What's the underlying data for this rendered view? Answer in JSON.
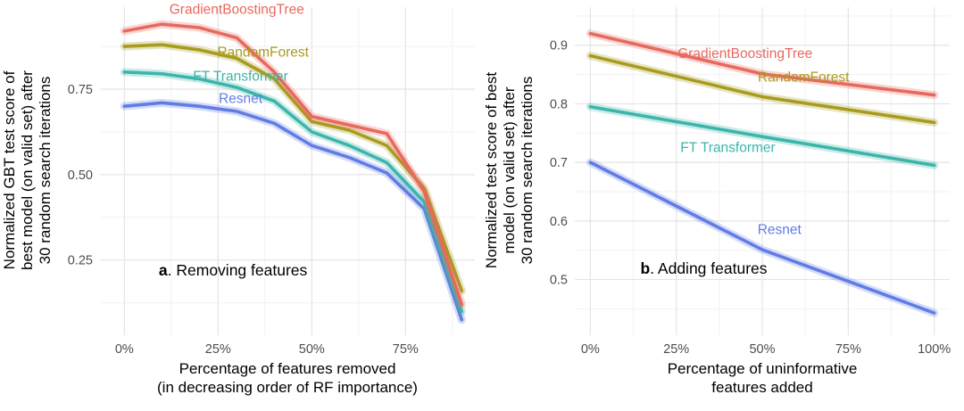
{
  "colors": {
    "GradientBoostingTree": "#E8695E",
    "RandomForest": "#A89B1D",
    "FT Transformer": "#3CB5AA",
    "Resnet": "#617CE5",
    "grid_major": "#E4E4E4",
    "grid_minor": "#F2F2F2",
    "tick_text": "#4D4D4D",
    "axis_title": "#000000",
    "annotation": "#000000"
  },
  "chart_data": [
    {
      "id": "removing-features",
      "type": "line",
      "annotation": {
        "letter": "a",
        "text": ". Removing features",
        "x": 29,
        "y": 0.205
      },
      "xlabel_lines": [
        "Percentage of features removed",
        "(in decreasing order of RF importance)"
      ],
      "ylabel_lines": [
        "Normalized GBT test score of",
        "best model (on valid set) after",
        "30 random search iterations"
      ],
      "xlim": [
        -6.5,
        93.5
      ],
      "ylim": [
        0.03,
        0.99
      ],
      "xticks": [
        0,
        25,
        50,
        75
      ],
      "xtick_labels": [
        "0%",
        "25%",
        "50%",
        "75%"
      ],
      "yticks": [
        0.25,
        0.5,
        0.75
      ],
      "ytick_labels": [
        "0.25",
        "0.50",
        "0.75"
      ],
      "grid": true,
      "legend": "inline-labels",
      "x": [
        0,
        10,
        20,
        30,
        40,
        50,
        60,
        70,
        80,
        90
      ],
      "series": [
        {
          "name": "GradientBoostingTree",
          "values": [
            0.92,
            0.94,
            0.93,
            0.9,
            0.8,
            0.67,
            0.645,
            0.62,
            0.45,
            0.12
          ],
          "label_x": 30,
          "label_y": 0.97
        },
        {
          "name": "RandomForest",
          "values": [
            0.875,
            0.88,
            0.865,
            0.84,
            0.78,
            0.655,
            0.63,
            0.585,
            0.46,
            0.16
          ],
          "label_x": 37,
          "label_y": 0.845
        },
        {
          "name": "FT Transformer",
          "values": [
            0.8,
            0.795,
            0.78,
            0.755,
            0.715,
            0.625,
            0.585,
            0.535,
            0.42,
            0.1
          ],
          "label_x": 31,
          "label_y": 0.775
        },
        {
          "name": "Resnet",
          "values": [
            0.7,
            0.71,
            0.7,
            0.685,
            0.65,
            0.585,
            0.55,
            0.505,
            0.4,
            0.075
          ],
          "label_x": 31,
          "label_y": 0.71
        }
      ]
    },
    {
      "id": "adding-features",
      "type": "line",
      "annotation": {
        "letter": "b",
        "text": ". Adding features",
        "x": 33,
        "y": 0.51
      },
      "xlabel_lines": [
        "Percentage of uninformative",
        "features added"
      ],
      "ylabel_lines": [
        "Normalized test score of best",
        "model (on valid set) after",
        "30 random search iterations"
      ],
      "xlim": [
        -4.5,
        104.5
      ],
      "ylim": [
        0.405,
        0.965
      ],
      "xticks": [
        0,
        25,
        50,
        75,
        100
      ],
      "xtick_labels": [
        "0%",
        "25%",
        "50%",
        "75%",
        "100%"
      ],
      "yticks": [
        0.5,
        0.6,
        0.7,
        0.8,
        0.9
      ],
      "ytick_labels": [
        "0.5",
        "0.6",
        "0.7",
        "0.8",
        "0.9"
      ],
      "grid": true,
      "legend": "inline-labels",
      "x": [
        0,
        50,
        100
      ],
      "series": [
        {
          "name": "GradientBoostingTree",
          "values": [
            0.92,
            0.851,
            0.815
          ],
          "label_x": 45,
          "label_y": 0.878
        },
        {
          "name": "RandomForest",
          "values": [
            0.882,
            0.812,
            0.768
          ],
          "label_x": 62,
          "label_y": 0.838
        },
        {
          "name": "FT Transformer",
          "values": [
            0.795,
            0.744,
            0.695
          ],
          "label_x": 40,
          "label_y": 0.718
        },
        {
          "name": "Resnet",
          "values": [
            0.7,
            0.551,
            0.443
          ],
          "label_x": 55,
          "label_y": 0.578
        }
      ]
    }
  ]
}
